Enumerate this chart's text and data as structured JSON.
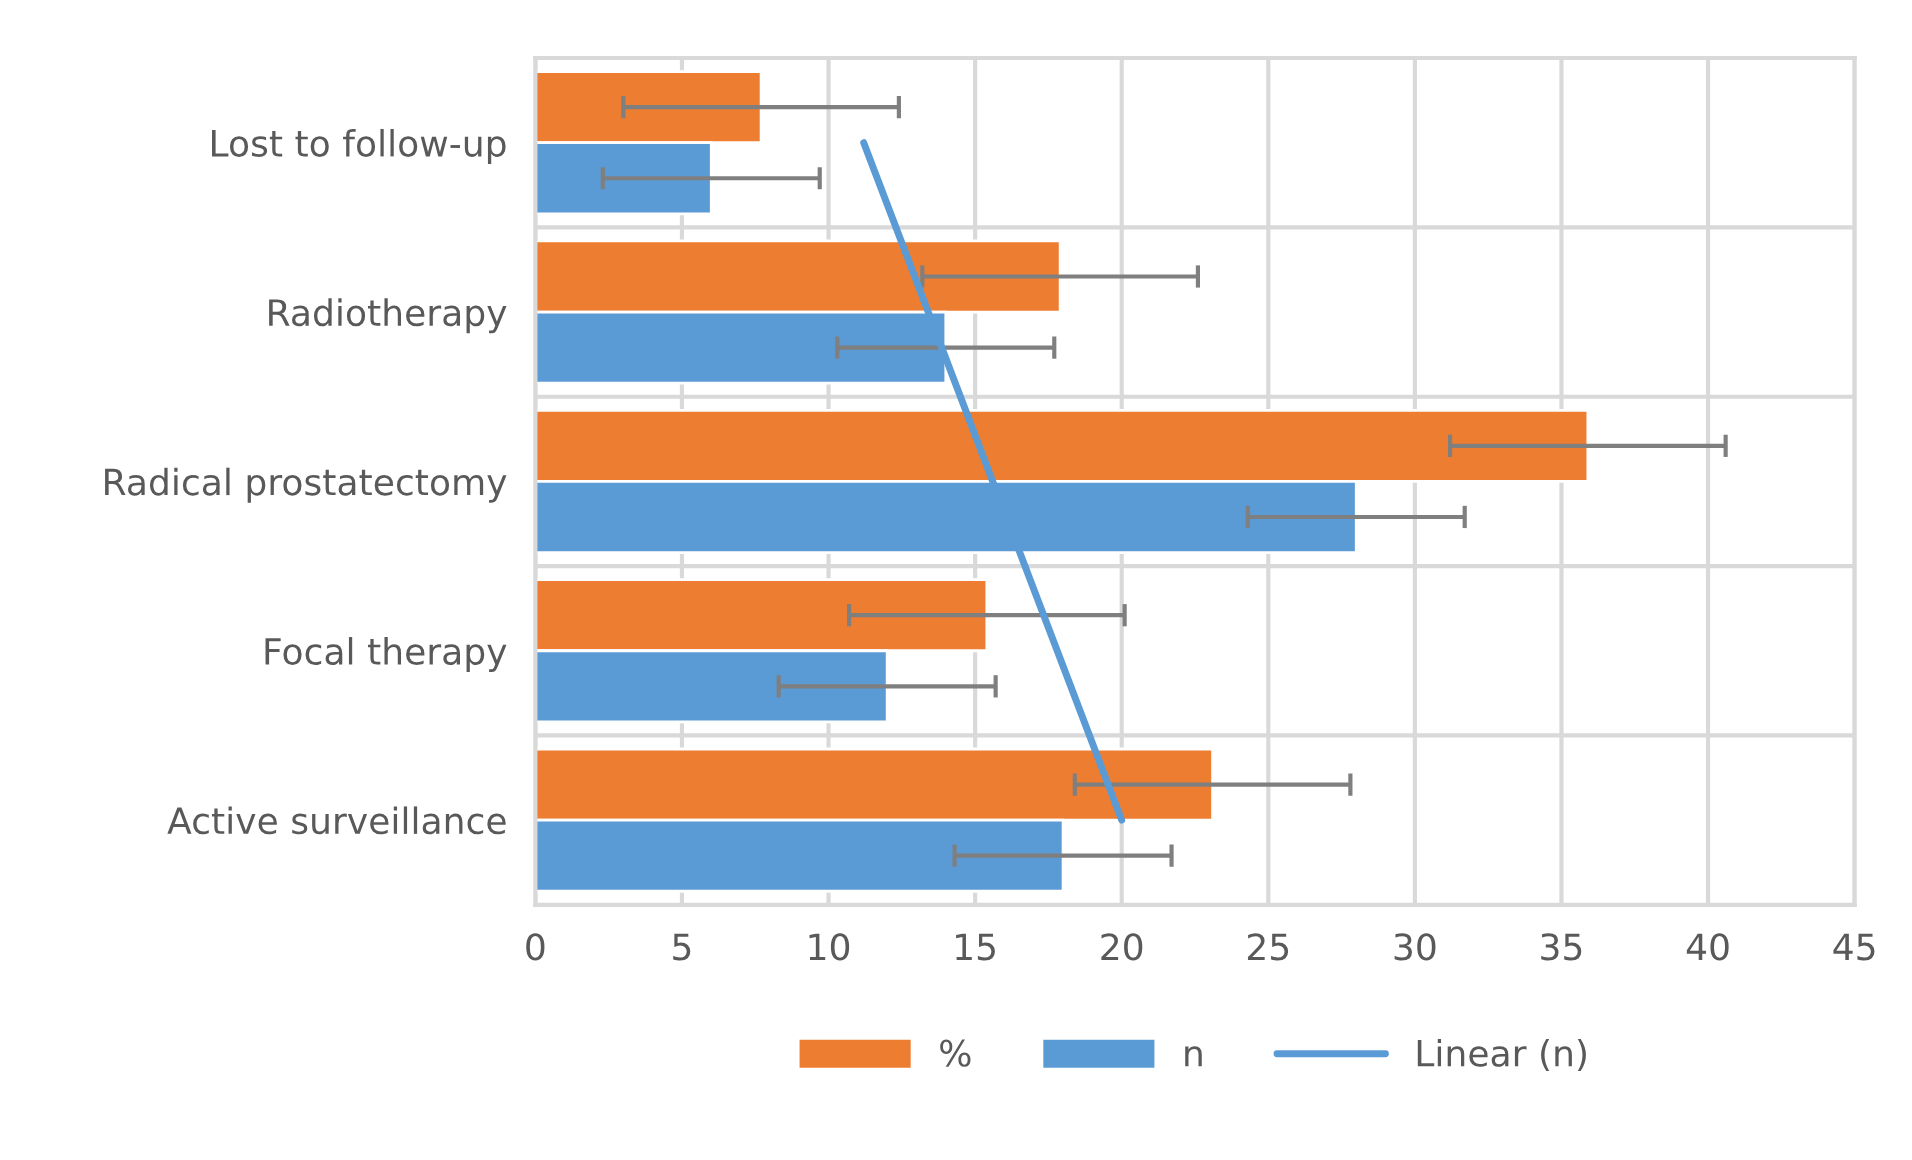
{
  "chart_data": {
    "type": "bar",
    "orientation": "horizontal",
    "categories": [
      "Lost to follow-up",
      "Radiotherapy",
      "Radical prostatectomy",
      "Focal therapy",
      "Active surveillance"
    ],
    "series": [
      {
        "name": "%",
        "color": "#ed7d31",
        "values": [
          7.7,
          17.9,
          35.9,
          15.4,
          23.1
        ],
        "errors": [
          4.7,
          4.7,
          4.7,
          4.7,
          4.7
        ]
      },
      {
        "name": "n",
        "color": "#5b9bd5",
        "values": [
          6,
          14,
          28,
          12,
          18
        ],
        "errors": [
          3.7,
          3.7,
          3.7,
          3.7,
          3.7
        ]
      },
      {
        "name": "Linear (n)",
        "type": "line",
        "color": "#5b9bd5",
        "values": [
          11.2,
          13.4,
          15.6,
          17.8,
          20.0
        ]
      }
    ],
    "xlim": [
      0,
      45
    ],
    "xticks": [
      0,
      5,
      10,
      15,
      20,
      25,
      30,
      35,
      40,
      45
    ],
    "grid": true,
    "legend": "bottom"
  }
}
